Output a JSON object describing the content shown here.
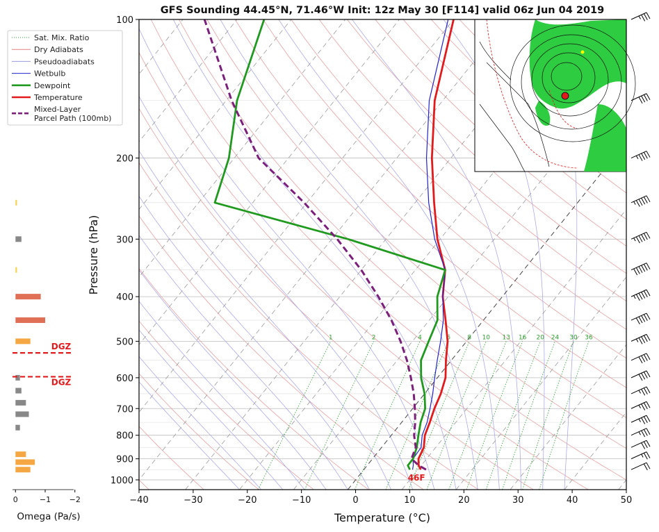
{
  "chart_data": {
    "type": "line",
    "title": "GFS Sounding 44.45°N, 71.46°W Init: 12z May 30 [F114] valid 06z Jun 04 2019",
    "xlabel": "Temperature (°C)",
    "ylabel": "Pressure (hPa)",
    "xlim": [
      -40,
      50
    ],
    "ylim": [
      1050,
      100
    ],
    "yscale": "log",
    "x_ticks": [
      -40,
      -30,
      -20,
      -10,
      0,
      10,
      20,
      30,
      40,
      50
    ],
    "x_tick_labels": [
      "−40",
      "−30",
      "−20",
      "−10",
      "0",
      "10",
      "20",
      "30",
      "40",
      "50"
    ],
    "y_ticks": [
      100,
      200,
      300,
      400,
      500,
      600,
      700,
      800,
      900,
      1000
    ],
    "y_tick_labels": [
      "100",
      "200",
      "300",
      "400",
      "500",
      "600",
      "700",
      "800",
      "900",
      "1000"
    ],
    "mixing_ratio_labels": [
      "1",
      "2",
      "4",
      "6",
      "8",
      "10",
      "13",
      "16",
      "20",
      "24",
      "30",
      "36"
    ],
    "mixing_ratio_values": [
      1,
      2,
      4,
      6,
      8,
      10,
      13,
      16,
      20,
      24,
      30,
      36
    ],
    "legend_placement": "upper-left",
    "legend": [
      {
        "label": "Sat. Mix. Ratio",
        "color": "#2ca02c",
        "style": "dotted"
      },
      {
        "label": "Dry Adiabats",
        "color": "#e08080",
        "style": "solid"
      },
      {
        "label": "Pseudoadiabats",
        "color": "#9999dd",
        "style": "solid"
      },
      {
        "label": "Wetbulb",
        "color": "#2222cc",
        "style": "solid"
      },
      {
        "label": "Dewpoint",
        "color": "#1f9a1f",
        "style": "thick"
      },
      {
        "label": "Temperature",
        "color": "#e31a1c",
        "style": "thick"
      },
      {
        "label": "Mixed-Layer",
        "label2": "Parcel Path (100mb)",
        "color": "#7b1f7b",
        "style": "dashed"
      }
    ],
    "series": [
      {
        "name": "Temperature",
        "color": "#e31a1c",
        "p": [
          950,
          930,
          900,
          850,
          800,
          750,
          700,
          650,
          600,
          550,
          500,
          450,
          400,
          350,
          300,
          250,
          200,
          150,
          100
        ],
        "t": [
          10.5,
          9.5,
          8.5,
          7.8,
          6.2,
          5.2,
          4.0,
          3.0,
          1.5,
          -1.0,
          -3.5,
          -7.0,
          -11.0,
          -14.5,
          -20.5,
          -26.5,
          -33.5,
          -41.5,
          -50.0
        ]
      },
      {
        "name": "Wetbulb",
        "color": "#2222cc",
        "p": [
          950,
          930,
          900,
          850,
          800,
          750,
          700,
          650,
          600,
          550,
          500,
          450,
          400,
          350,
          300,
          250,
          200,
          150,
          100
        ],
        "t": [
          9.0,
          8.5,
          7.5,
          7.3,
          5.7,
          4.7,
          3.2,
          1.5,
          -0.5,
          -2.6,
          -4.8,
          -7.4,
          -11.0,
          -14.5,
          -21.0,
          -27.5,
          -34.5,
          -42.5,
          -51.0
        ]
      },
      {
        "name": "Dewpoint",
        "color": "#1f9a1f",
        "p": [
          950,
          930,
          900,
          850,
          800,
          750,
          700,
          650,
          600,
          550,
          500,
          450,
          400,
          350,
          300,
          250,
          200,
          150,
          100
        ],
        "t": [
          8.5,
          7.5,
          7.5,
          6.5,
          5.0,
          3.5,
          2.3,
          0.0,
          -3.0,
          -5.6,
          -7.0,
          -8.5,
          -12.0,
          -14.5,
          -37.0,
          -67.0,
          -71.0,
          -78.0,
          -85.0
        ]
      },
      {
        "name": "Mixed-Layer Parcel Path (100mb)",
        "color": "#7b1f7b",
        "p": [
          950,
          930,
          900,
          850,
          800,
          750,
          700,
          650,
          600,
          550,
          500,
          450,
          400,
          350,
          300,
          250,
          200,
          150,
          100
        ],
        "t": [
          11.5,
          9.5,
          7.2,
          6.3,
          4.2,
          2.5,
          0.4,
          -2.0,
          -4.9,
          -8.2,
          -12.2,
          -17.0,
          -22.9,
          -30.0,
          -39.0,
          -50.5,
          -65.5,
          -79.0,
          -96.0
        ]
      }
    ],
    "surface_label": "46F",
    "omega": {
      "xlabel": "Omega (Pa/s)",
      "ticks": [
        0,
        -1,
        -2
      ],
      "tick_labels": [
        "0",
        "−1",
        "−2"
      ],
      "xlim": [
        0.1,
        -2.1
      ],
      "p": [
        950,
        915,
        880,
        770,
        720,
        680,
        640,
        600,
        500,
        450,
        400,
        350,
        300,
        250
      ],
      "values": [
        -0.5,
        -0.65,
        -0.35,
        -0.15,
        -0.45,
        -0.35,
        -0.2,
        -0.15,
        -0.5,
        -1.0,
        -0.85,
        -0.05,
        -0.2,
        -0.05
      ],
      "colors": [
        "#f4a742",
        "#f4a742",
        "#f4a742",
        "#888888",
        "#888888",
        "#888888",
        "#888888",
        "#888888",
        "#f4a742",
        "#e07055",
        "#e07055",
        "#f7d04a",
        "#888888",
        "#f7d04a"
      ],
      "dgz_label": "DGZ",
      "dgz_pressures": [
        530,
        597
      ]
    },
    "wind_pressures": [
      950,
      900,
      850,
      800,
      750,
      700,
      650,
      600,
      550,
      500,
      450,
      400,
      350,
      300,
      250,
      200,
      150,
      100
    ],
    "wind_speeds_kt": [
      20,
      25,
      30,
      35,
      35,
      35,
      35,
      40,
      40,
      45,
      50,
      55,
      60,
      55,
      55,
      45,
      40,
      35
    ]
  }
}
